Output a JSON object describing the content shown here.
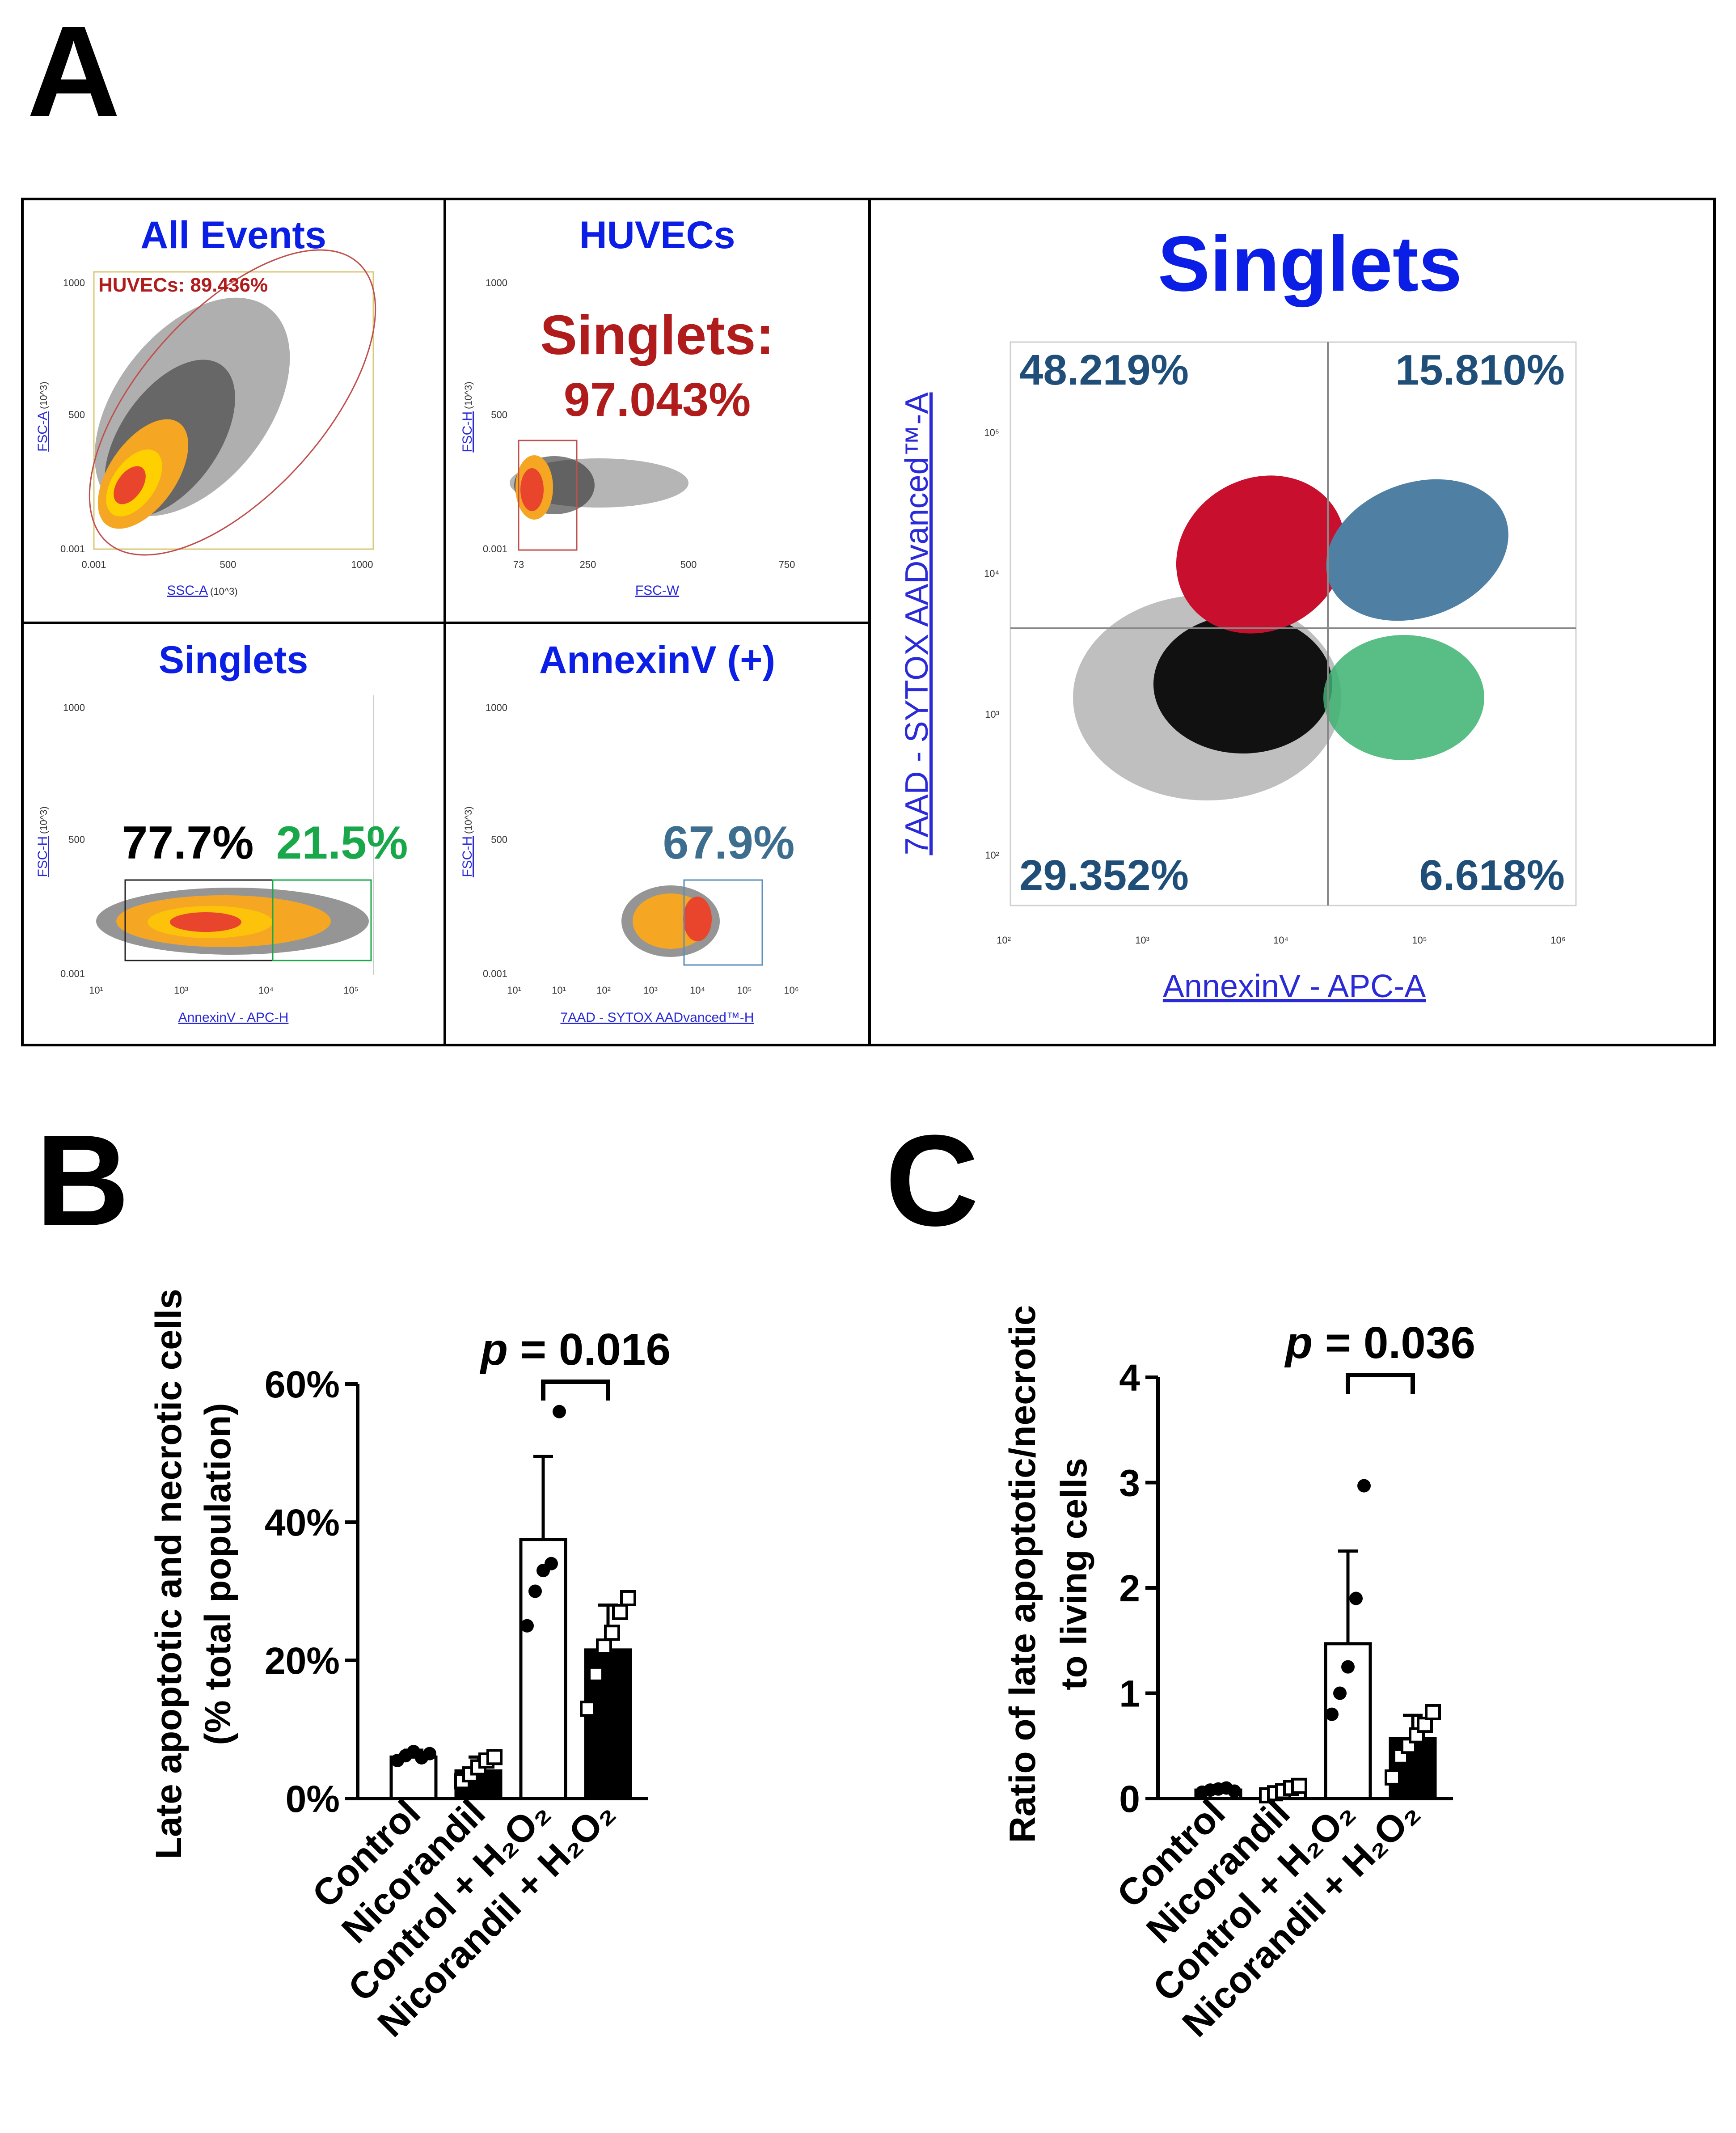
{
  "panel_letters": {
    "a": "A",
    "b": "B",
    "c": "C"
  },
  "colors": {
    "title_blue": "#0a1ee6",
    "gate_red": "#b01c1c",
    "annexin_green": "#18a84a",
    "steel_blue": "#3d6e8f",
    "quad_text": "#1f4e79",
    "late_red": "#c8102e",
    "density_orange": "#f5a623",
    "density_yellow": "#ffd000",
    "density_red": "#e8452c"
  },
  "panel_a": {
    "all_events": {
      "title": "All Events",
      "gate_label": "HUVECs: 89.436%",
      "x_label": "SSC-A",
      "x_unit": "(10^3)",
      "y_label": "FSC-A",
      "y_unit": "(10^3)",
      "x_ticks": [
        "0.001",
        "500",
        "1000"
      ],
      "y_ticks": [
        "1000",
        "500",
        "0.001"
      ]
    },
    "huvecs": {
      "title": "HUVECs",
      "gate_label_1": "Singlets:",
      "gate_label_2": "97.043%",
      "x_label": "FSC-W",
      "y_label": "FSC-H",
      "y_unit": "(10^3)",
      "x_ticks": [
        "73",
        "250",
        "500",
        "750"
      ],
      "y_ticks": [
        "1000",
        "500",
        "0.001"
      ]
    },
    "singlets_small": {
      "title": "Singlets",
      "pct_black": "77.7%",
      "pct_green": "21.5%",
      "x_label": "AnnexinV - APC-H",
      "y_label": "FSC-H",
      "y_unit": "(10^3)",
      "x_ticks": [
        "10¹",
        "10³",
        "10⁴",
        "10⁵"
      ],
      "y_ticks": [
        "1000",
        "500",
        "0.001"
      ]
    },
    "annexin_pos": {
      "title": "AnnexinV (+)",
      "pct": "67.9%",
      "x_label": "7AAD - SYTOX AADvanced™-H",
      "y_label": "FSC-H",
      "y_unit": "(10^3)",
      "x_ticks": [
        "10¹",
        "10¹",
        "10²",
        "10³",
        "10⁴",
        "10⁵",
        "10⁶"
      ],
      "y_ticks": [
        "1000",
        "500",
        "0.001"
      ]
    },
    "quadrant": {
      "title": "Singlets",
      "q_upper_left": "48.219%",
      "q_upper_right": "15.810%",
      "q_lower_left": "29.352%",
      "q_lower_right": "6.618%",
      "x_label": "AnnexinV - APC-A",
      "y_label": "7AAD - SYTOX AADvanced™-A",
      "x_ticks": [
        "10²",
        "10³",
        "10⁴",
        "10⁵",
        "10⁶"
      ],
      "y_ticks": [
        "10⁵",
        "10⁴",
        "10³",
        "10²"
      ]
    }
  },
  "chart_data": [
    {
      "id": "B",
      "type": "bar",
      "ylabel_line1": "Late apoptotic and necrotic cells",
      "ylabel_line2": "(% total population)",
      "categories": [
        "Control",
        "Nicorandil",
        "Control + H₂O₂",
        "Nicorandil + H₂O₂"
      ],
      "values": [
        6.0,
        4.0,
        37.5,
        21.5
      ],
      "sd": [
        1.0,
        2.0,
        12.0,
        6.5
      ],
      "points": [
        [
          5.5,
          6.2,
          6.8,
          5.9,
          6.5
        ],
        [
          2.5,
          3.5,
          4.5,
          5.5,
          6.0
        ],
        [
          25.0,
          30.0,
          33.0,
          34.0,
          56.0
        ],
        [
          13.0,
          18.0,
          22.0,
          24.0,
          27.0,
          29.0
        ]
      ],
      "fills": [
        "#ffffff",
        "#000000",
        "#ffffff",
        "#000000"
      ],
      "markers": [
        "dot",
        "square",
        "dot",
        "square"
      ],
      "ylim": [
        0,
        60
      ],
      "yticks": [
        0,
        20,
        40,
        60
      ],
      "ytick_labels": [
        "0%",
        "20%",
        "40%",
        "60%"
      ],
      "comparison": {
        "from": 2,
        "to": 3,
        "p_label": "p",
        "p_value": "= 0.016"
      }
    },
    {
      "id": "C",
      "type": "bar",
      "ylabel_line1": "Ratio of late apoptotic/necrotic",
      "ylabel_line2": "to living cells",
      "categories": [
        "Control",
        "Nicorandil",
        "Control + H₂O₂",
        "Nicorandil + H₂O₂"
      ],
      "values": [
        0.08,
        0.07,
        1.47,
        0.57
      ],
      "sd": [
        0.02,
        0.04,
        0.88,
        0.22
      ],
      "points": [
        [
          0.06,
          0.08,
          0.09,
          0.1,
          0.07
        ],
        [
          0.03,
          0.05,
          0.07,
          0.1,
          0.12
        ],
        [
          0.8,
          1.0,
          1.25,
          1.9,
          2.97
        ],
        [
          0.2,
          0.4,
          0.5,
          0.6,
          0.7,
          0.82
        ]
      ],
      "fills": [
        "#ffffff",
        "#ffffff",
        "#ffffff",
        "#000000"
      ],
      "markers": [
        "dot",
        "square",
        "dot",
        "square"
      ],
      "ylim": [
        0,
        4
      ],
      "yticks": [
        0,
        1,
        2,
        3,
        4
      ],
      "ytick_labels": [
        "0",
        "1",
        "2",
        "3",
        "4"
      ],
      "comparison": {
        "from": 2,
        "to": 3,
        "p_label": "p",
        "p_value": "= 0.036"
      }
    }
  ]
}
